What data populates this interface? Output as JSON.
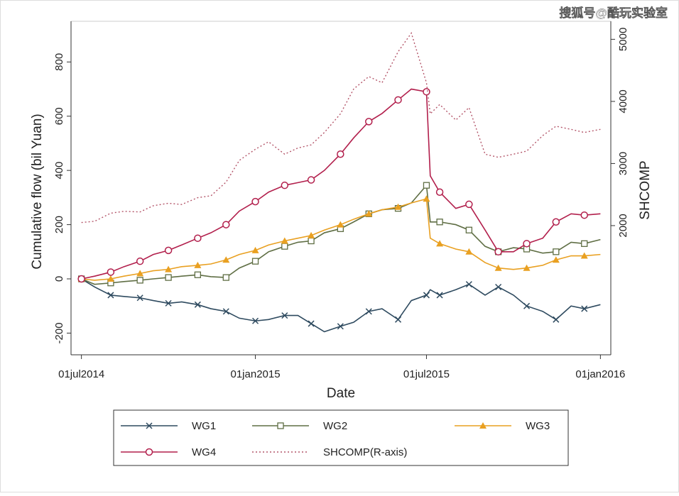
{
  "chart_data": {
    "type": "line",
    "watermark": "搜狐号@酷玩实验室",
    "ylabel": "Cumulative flow (bil Yuan)",
    "y2label": "SHCOMP",
    "xlabel": "Date",
    "xlim": [
      "2014-06-20",
      "2016-01-12"
    ],
    "xticks": [
      {
        "value": "2014-07-01",
        "label": "01jul2014"
      },
      {
        "value": "2015-01-01",
        "label": "01jan2015"
      },
      {
        "value": "2015-07-01",
        "label": "01jul2015"
      },
      {
        "value": "2016-01-01",
        "label": "01jan2016"
      }
    ],
    "ylim": [
      -280,
      950
    ],
    "yticks": [
      -200,
      0,
      200,
      400,
      600,
      800
    ],
    "y2lim": [
      -80,
      5290
    ],
    "y2ticks": [
      2000,
      3000,
      4000,
      5000
    ],
    "x": [
      "2014-07-01",
      "2014-07-15",
      "2014-08-01",
      "2014-08-15",
      "2014-09-01",
      "2014-09-15",
      "2014-10-01",
      "2014-10-15",
      "2014-11-01",
      "2014-11-15",
      "2014-12-01",
      "2014-12-15",
      "2015-01-01",
      "2015-01-15",
      "2015-02-01",
      "2015-02-15",
      "2015-03-01",
      "2015-03-15",
      "2015-04-01",
      "2015-04-15",
      "2015-05-01",
      "2015-05-15",
      "2015-06-01",
      "2015-06-15",
      "2015-07-01",
      "2015-07-05",
      "2015-07-15",
      "2015-08-01",
      "2015-08-15",
      "2015-09-01",
      "2015-09-15",
      "2015-10-01",
      "2015-10-15",
      "2015-11-01",
      "2015-11-15",
      "2015-12-01",
      "2015-12-15",
      "2016-01-01"
    ],
    "series": [
      {
        "name": "WG1",
        "color": "#2e4a5f",
        "marker": "x",
        "values": [
          0,
          -30,
          -60,
          -65,
          -70,
          -80,
          -90,
          -85,
          -95,
          -110,
          -120,
          -145,
          -155,
          -150,
          -135,
          -135,
          -165,
          -195,
          -175,
          -160,
          -120,
          -110,
          -150,
          -80,
          -60,
          -40,
          -60,
          -40,
          -20,
          -60,
          -30,
          -60,
          -100,
          -120,
          -150,
          -100,
          -110,
          -95
        ]
      },
      {
        "name": "WG2",
        "color": "#5f6e44",
        "marker": "square",
        "values": [
          0,
          -20,
          -15,
          -10,
          -5,
          0,
          5,
          10,
          15,
          8,
          5,
          40,
          65,
          100,
          120,
          135,
          140,
          170,
          185,
          210,
          240,
          255,
          260,
          280,
          345,
          210,
          210,
          200,
          180,
          120,
          100,
          115,
          110,
          95,
          100,
          135,
          130,
          145
        ]
      },
      {
        "name": "WG3",
        "color": "#e9a021",
        "marker": "triangle",
        "values": [
          0,
          -5,
          0,
          10,
          20,
          30,
          35,
          45,
          50,
          55,
          70,
          90,
          105,
          125,
          140,
          150,
          160,
          180,
          200,
          220,
          240,
          255,
          265,
          280,
          295,
          150,
          130,
          110,
          100,
          60,
          40,
          35,
          40,
          50,
          70,
          85,
          85,
          90
        ]
      },
      {
        "name": "WG4",
        "color": "#b21f4c",
        "marker": "circle",
        "values": [
          0,
          10,
          25,
          45,
          65,
          90,
          105,
          125,
          150,
          170,
          200,
          250,
          285,
          320,
          345,
          355,
          365,
          400,
          460,
          520,
          580,
          610,
          660,
          700,
          690,
          380,
          320,
          260,
          275,
          180,
          100,
          100,
          130,
          150,
          210,
          240,
          235,
          240
        ]
      },
      {
        "name": "SHCOMP(R-axis)",
        "color": "#b4566a",
        "style": "dotted",
        "axis": "y2",
        "values": [
          2050,
          2070,
          2200,
          2230,
          2220,
          2320,
          2360,
          2340,
          2450,
          2480,
          2700,
          3050,
          3230,
          3350,
          3150,
          3250,
          3300,
          3500,
          3800,
          4200,
          4400,
          4300,
          4800,
          5100,
          4300,
          3800,
          3950,
          3700,
          3900,
          3150,
          3100,
          3150,
          3200,
          3450,
          3600,
          3550,
          3500,
          3550
        ]
      }
    ]
  }
}
